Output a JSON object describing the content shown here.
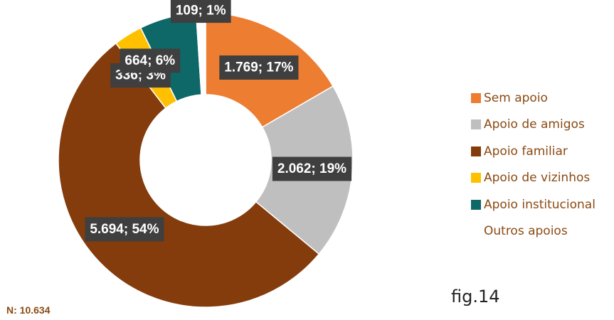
{
  "chart_data": {
    "type": "pie",
    "variant": "doughnut",
    "slices": [
      {
        "name": "Sem apoio",
        "value": 1769,
        "percent": 17,
        "label": "1.769; 17%",
        "color": "#ed7d31"
      },
      {
        "name": "Apoio de amigos",
        "value": 2062,
        "percent": 19,
        "label": "2.062; 19%",
        "color": "#bfbfbf"
      },
      {
        "name": "Apoio familiar",
        "value": 5694,
        "percent": 54,
        "label": "5.694; 54%",
        "color": "#843c0c"
      },
      {
        "name": "Apoio de vizinhos",
        "value": 336,
        "percent": 3,
        "label": "336; 3%",
        "color": "#ffc000"
      },
      {
        "name": "Apoio institucional",
        "value": 664,
        "percent": 6,
        "label": "664; 6%",
        "color": "#0e6868"
      },
      {
        "name": "Outros apoios",
        "value": 109,
        "percent": 1,
        "label": "109; 1%",
        "color": "#ffffff"
      }
    ],
    "legend_position": "right",
    "total_label": "N: 10.634"
  },
  "figure_label": "fig.14"
}
